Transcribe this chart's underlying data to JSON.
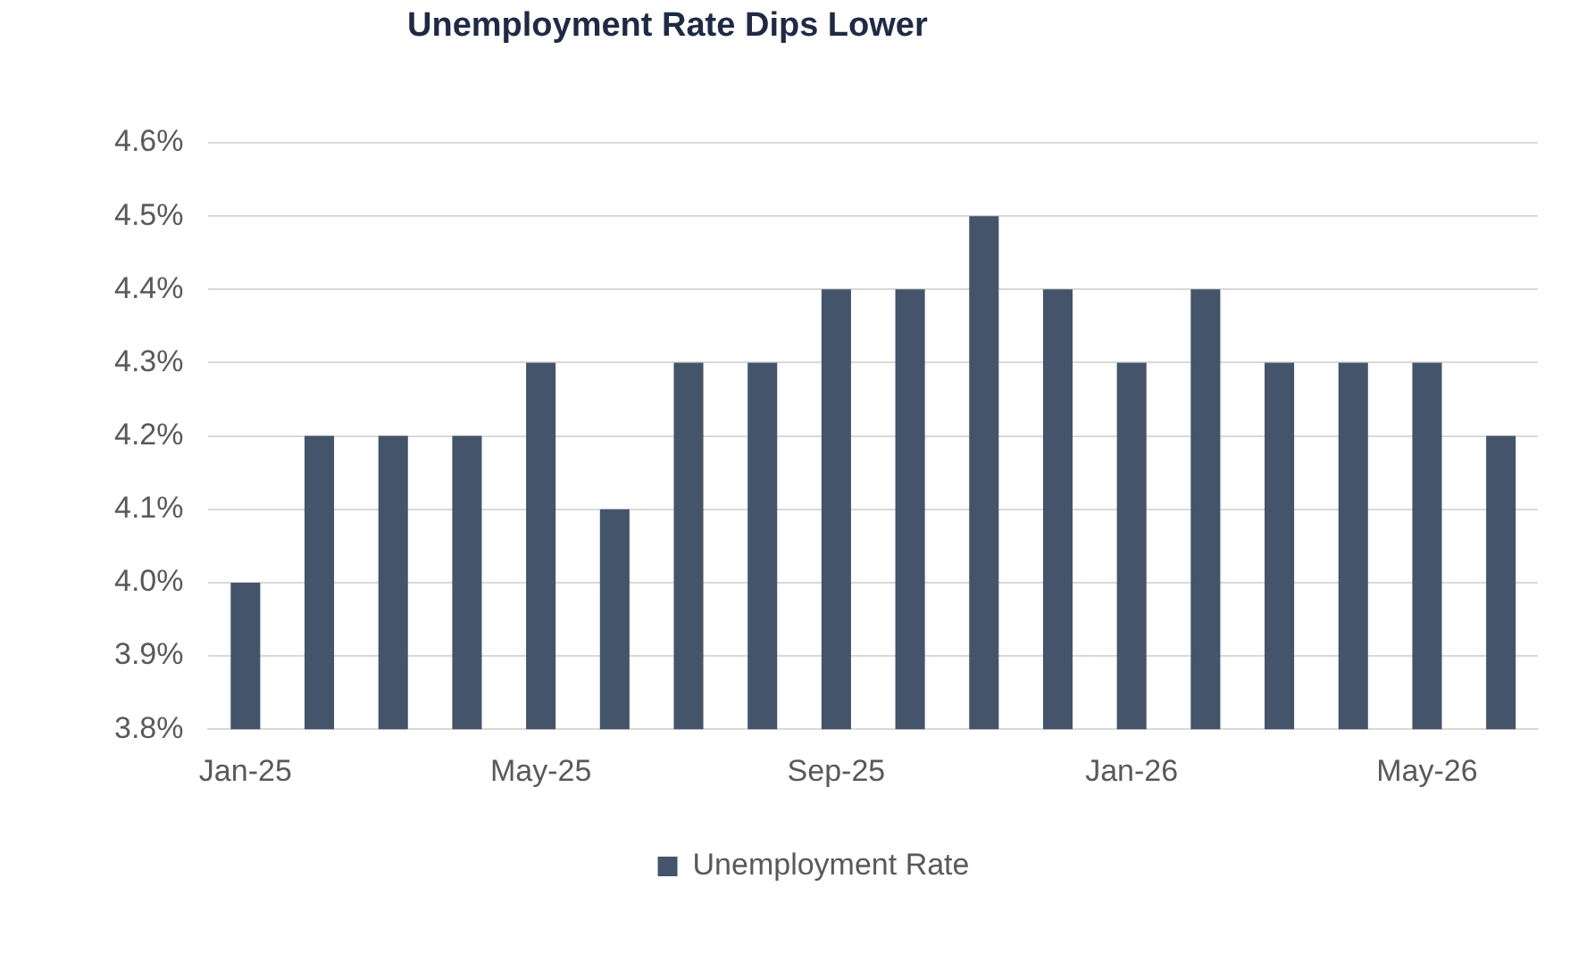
{
  "chart_data": {
    "type": "bar",
    "title": "Unemployment Rate Dips Lower",
    "categories": [
      "Jan-25",
      null,
      null,
      null,
      "May-25",
      null,
      null,
      null,
      "Sep-25",
      null,
      null,
      null,
      "Jan-26",
      null,
      null,
      null,
      "May-26",
      null
    ],
    "series": [
      {
        "name": "Unemployment Rate",
        "color": "#44546a",
        "values": [
          4.0,
          4.2,
          4.2,
          4.2,
          4.3,
          4.1,
          4.3,
          4.3,
          4.4,
          4.4,
          4.5,
          4.4,
          4.3,
          4.4,
          4.3,
          4.3,
          4.3,
          4.2
        ]
      }
    ],
    "ylim": [
      3.8,
      4.6
    ],
    "yticks": [
      {
        "value": 3.8,
        "label": "3.8%"
      },
      {
        "value": 3.9,
        "label": "3.9%"
      },
      {
        "value": 4.0,
        "label": "4.0%"
      },
      {
        "value": 4.1,
        "label": "4.1%"
      },
      {
        "value": 4.2,
        "label": "4.2%"
      },
      {
        "value": 4.3,
        "label": "4.3%"
      },
      {
        "value": 4.4,
        "label": "4.4%"
      },
      {
        "value": 4.5,
        "label": "4.5%"
      },
      {
        "value": 4.6,
        "label": "4.6%"
      }
    ],
    "grid": "y",
    "legend": "bottom"
  }
}
